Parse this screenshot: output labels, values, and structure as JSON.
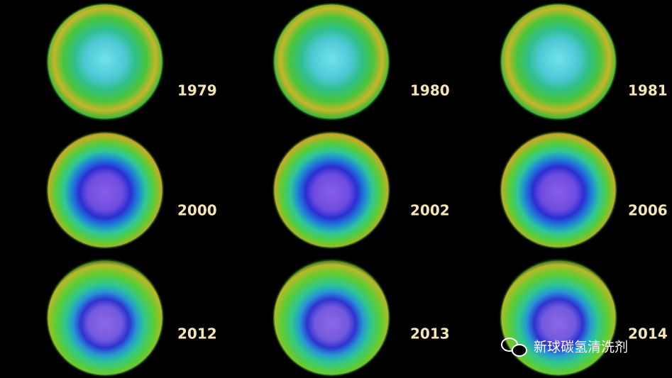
{
  "panels": [
    {
      "year": "1979"
    },
    {
      "year": "1980"
    },
    {
      "year": "1981"
    },
    {
      "year": "2000"
    },
    {
      "year": "2002"
    },
    {
      "year": "2006"
    },
    {
      "year": "2012"
    },
    {
      "year": "2013"
    },
    {
      "year": "2014"
    }
  ],
  "watermark": "新球碳氢清洗剂"
}
